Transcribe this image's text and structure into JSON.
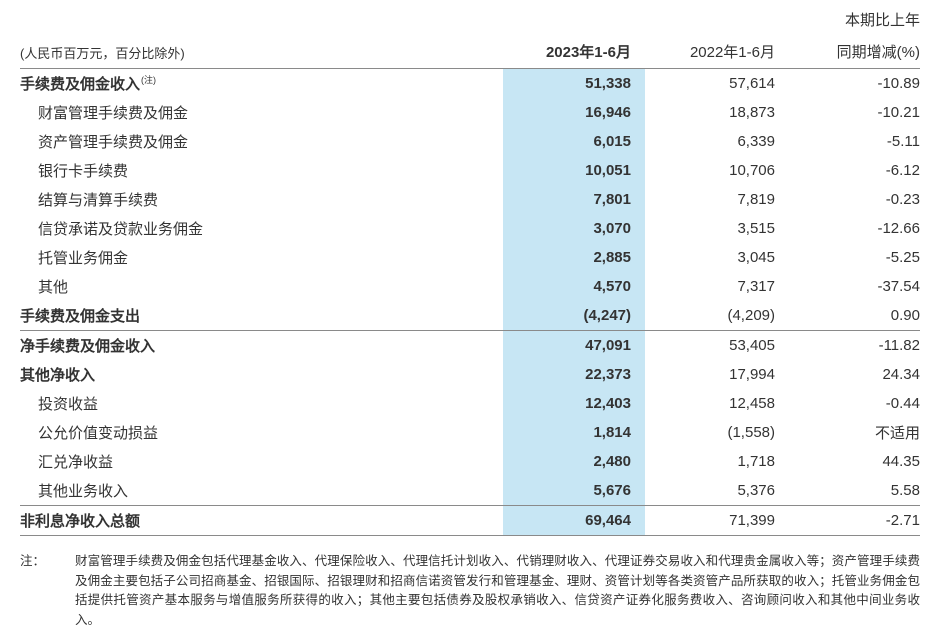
{
  "page": {
    "colors": {
      "highlight_column": "#c7e6f4",
      "rule": "#8a8a8a",
      "text": "#333333"
    },
    "header": {
      "unit_note": "(人民币百万元，百分比除外)",
      "col_2023": "2023年1-6月",
      "col_2022": "2022年1-6月",
      "col_change_line1": "本期比上年",
      "col_change_line2": "同期增减(%)"
    },
    "rows": [
      {
        "label": "手续费及佣金收入",
        "sup": "(注)",
        "v2023": "51,338",
        "v2022": "57,614",
        "change": "-10.89"
      },
      {
        "label": "财富管理手续费及佣金",
        "v2023": "16,946",
        "v2022": "18,873",
        "change": "-10.21"
      },
      {
        "label": "资产管理手续费及佣金",
        "v2023": "6,015",
        "v2022": "6,339",
        "change": "-5.11"
      },
      {
        "label": "银行卡手续费",
        "v2023": "10,051",
        "v2022": "10,706",
        "change": "-6.12"
      },
      {
        "label": "结算与清算手续费",
        "v2023": "7,801",
        "v2022": "7,819",
        "change": "-0.23"
      },
      {
        "label": "信贷承诺及贷款业务佣金",
        "v2023": "3,070",
        "v2022": "3,515",
        "change": "-12.66"
      },
      {
        "label": "托管业务佣金",
        "v2023": "2,885",
        "v2022": "3,045",
        "change": "-5.25"
      },
      {
        "label": "其他",
        "v2023": "4,570",
        "v2022": "7,317",
        "change": "-37.54"
      },
      {
        "label": "手续费及佣金支出",
        "v2023": "(4,247)",
        "v2022": "(4,209)",
        "change": "0.90"
      },
      {
        "label": "净手续费及佣金收入",
        "v2023": "47,091",
        "v2022": "53,405",
        "change": "-11.82"
      },
      {
        "label": "其他净收入",
        "v2023": "22,373",
        "v2022": "17,994",
        "change": "24.34"
      },
      {
        "label": "投资收益",
        "v2023": "12,403",
        "v2022": "12,458",
        "change": "-0.44"
      },
      {
        "label": "公允价值变动损益",
        "v2023": "1,814",
        "v2022": "(1,558)",
        "change": "不适用"
      },
      {
        "label": "汇兑净收益",
        "v2023": "2,480",
        "v2022": "1,718",
        "change": "44.35"
      },
      {
        "label": "其他业务收入",
        "v2023": "5,676",
        "v2022": "5,376",
        "change": "5.58"
      },
      {
        "label": "非利息净收入总额",
        "v2023": "69,464",
        "v2022": "71,399",
        "change": "-2.71"
      }
    ],
    "footnote": {
      "label": "注：",
      "text": "财富管理手续费及佣金包括代理基金收入、代理保险收入、代理信托计划收入、代销理财收入、代理证券交易收入和代理贵金属收入等；资产管理手续费及佣金主要包括子公司招商基金、招银国际、招银理财和招商信诺资管发行和管理基金、理财、资管计划等各类资管产品所获取的收入；托管业务佣金包括提供托管资产基本服务与增值服务所获得的收入；其他主要包括债券及股权承销收入、信贷资产证券化服务费收入、咨询顾问收入和其他中间业务收入。"
    }
  }
}
